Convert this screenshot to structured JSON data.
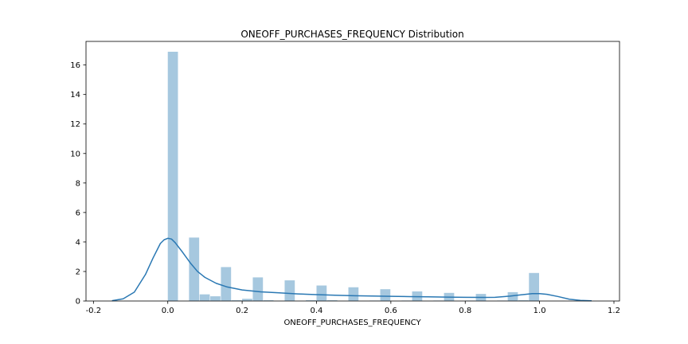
{
  "chart_data": {
    "type": "bar",
    "title": "ONEOFF_PURCHASES_FREQUENCY Distribution",
    "xlabel": "ONEOFF_PURCHASES_FREQUENCY",
    "ylabel": "",
    "xlim": [
      -0.22,
      1.215
    ],
    "ylim": [
      0,
      17.6
    ],
    "xticks": [
      -0.2,
      0.0,
      0.2,
      0.4,
      0.6,
      0.8,
      1.0,
      1.2
    ],
    "xtick_labels": [
      "-0.2",
      "0.0",
      "0.2",
      "0.4",
      "0.6",
      "0.8",
      "1.0",
      "1.2"
    ],
    "yticks": [
      0,
      2,
      4,
      6,
      8,
      10,
      12,
      14,
      16
    ],
    "ytick_labels": [
      "0",
      "2",
      "4",
      "6",
      "8",
      "10",
      "12",
      "14",
      "16"
    ],
    "grid": false,
    "legend": "none",
    "bar_color": "#a6c8df",
    "line_color": "#2a78b3",
    "bin_width": 0.0286,
    "bins": [
      {
        "x0": 0.0,
        "value": 16.9
      },
      {
        "x0": 0.0286,
        "value": 0.0
      },
      {
        "x0": 0.0571,
        "value": 4.3
      },
      {
        "x0": 0.0857,
        "value": 0.45
      },
      {
        "x0": 0.1143,
        "value": 0.32
      },
      {
        "x0": 0.1429,
        "value": 2.3
      },
      {
        "x0": 0.1714,
        "value": 0.05
      },
      {
        "x0": 0.2,
        "value": 0.15
      },
      {
        "x0": 0.2286,
        "value": 1.6
      },
      {
        "x0": 0.2571,
        "value": 0.05
      },
      {
        "x0": 0.2857,
        "value": 0.0
      },
      {
        "x0": 0.3143,
        "value": 1.4
      },
      {
        "x0": 0.3429,
        "value": 0.0
      },
      {
        "x0": 0.3714,
        "value": 0.05
      },
      {
        "x0": 0.4,
        "value": 1.05
      },
      {
        "x0": 0.4286,
        "value": 0.05
      },
      {
        "x0": 0.4571,
        "value": 0.0
      },
      {
        "x0": 0.4857,
        "value": 0.93
      },
      {
        "x0": 0.5143,
        "value": 0.0
      },
      {
        "x0": 0.5429,
        "value": 0.03
      },
      {
        "x0": 0.5714,
        "value": 0.8
      },
      {
        "x0": 0.6,
        "value": 0.0
      },
      {
        "x0": 0.6286,
        "value": 0.03
      },
      {
        "x0": 0.6571,
        "value": 0.65
      },
      {
        "x0": 0.6857,
        "value": 0.0
      },
      {
        "x0": 0.7143,
        "value": 0.03
      },
      {
        "x0": 0.7429,
        "value": 0.55
      },
      {
        "x0": 0.7714,
        "value": 0.0
      },
      {
        "x0": 0.8,
        "value": 0.03
      },
      {
        "x0": 0.8286,
        "value": 0.48
      },
      {
        "x0": 0.8571,
        "value": 0.0
      },
      {
        "x0": 0.8857,
        "value": 0.03
      },
      {
        "x0": 0.9143,
        "value": 0.6
      },
      {
        "x0": 0.9429,
        "value": 0.05
      },
      {
        "x0": 0.9714,
        "value": 1.9
      }
    ],
    "kde": {
      "x": [
        -0.15,
        -0.12,
        -0.09,
        -0.06,
        -0.04,
        -0.02,
        -0.01,
        0.0,
        0.01,
        0.02,
        0.04,
        0.06,
        0.08,
        0.1,
        0.13,
        0.16,
        0.2,
        0.25,
        0.3,
        0.35,
        0.4,
        0.45,
        0.5,
        0.55,
        0.6,
        0.65,
        0.7,
        0.75,
        0.8,
        0.85,
        0.88,
        0.92,
        0.95,
        0.98,
        1.0,
        1.02,
        1.05,
        1.08,
        1.11,
        1.14
      ],
      "y": [
        0.02,
        0.15,
        0.6,
        1.8,
        2.9,
        3.9,
        4.15,
        4.25,
        4.2,
        3.95,
        3.3,
        2.6,
        2.0,
        1.6,
        1.2,
        0.95,
        0.75,
        0.62,
        0.55,
        0.48,
        0.43,
        0.39,
        0.36,
        0.34,
        0.32,
        0.3,
        0.28,
        0.26,
        0.25,
        0.24,
        0.25,
        0.33,
        0.42,
        0.5,
        0.5,
        0.45,
        0.3,
        0.12,
        0.04,
        0.01
      ]
    }
  }
}
